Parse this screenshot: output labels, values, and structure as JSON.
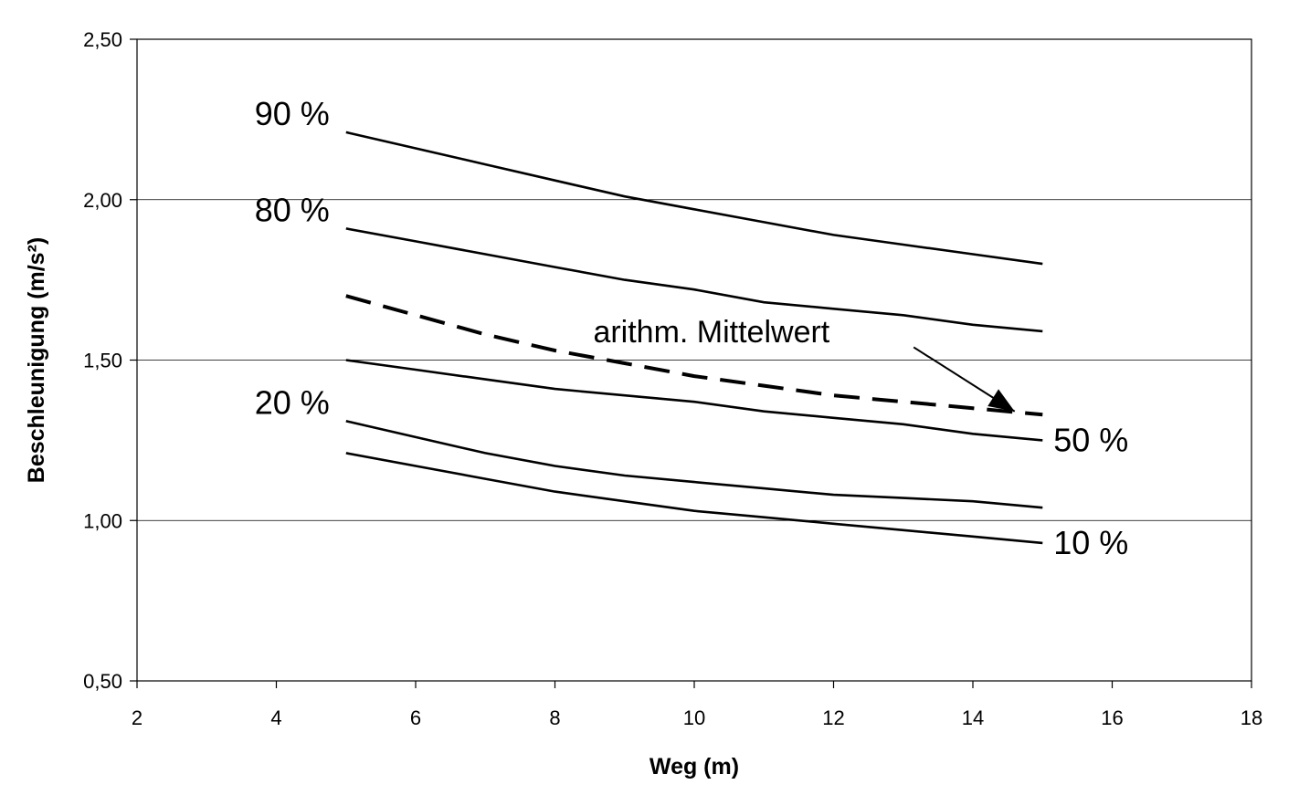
{
  "chart_data": {
    "type": "line",
    "title": "",
    "xlabel": "Weg (m)",
    "ylabel": "Beschleunigung (m/s²)",
    "xlim": [
      2,
      18
    ],
    "ylim": [
      0.5,
      2.5
    ],
    "x_ticks": [
      2,
      4,
      6,
      8,
      10,
      12,
      14,
      16,
      18
    ],
    "x_tick_labels": [
      "2",
      "4",
      "6",
      "8",
      "10",
      "12",
      "14",
      "16",
      "18"
    ],
    "y_ticks": [
      0.5,
      1.0,
      1.5,
      2.0,
      2.5
    ],
    "y_tick_labels": [
      "0,50",
      "1,00",
      "1,50",
      "2,00",
      "2,50"
    ],
    "grid": "horizontal",
    "x": [
      5,
      6,
      7,
      8,
      9,
      10,
      11,
      12,
      13,
      14,
      15
    ],
    "series": [
      {
        "name": "90 %",
        "style": "solid",
        "values": [
          2.21,
          2.16,
          2.11,
          2.06,
          2.01,
          1.97,
          1.93,
          1.89,
          1.86,
          1.83,
          1.8
        ]
      },
      {
        "name": "80 %",
        "style": "solid",
        "values": [
          1.91,
          1.87,
          1.83,
          1.79,
          1.75,
          1.72,
          1.68,
          1.66,
          1.64,
          1.61,
          1.59
        ]
      },
      {
        "name": "arithm. Mittelwert",
        "style": "dashed",
        "values": [
          1.7,
          1.64,
          1.58,
          1.53,
          1.49,
          1.45,
          1.42,
          1.39,
          1.37,
          1.35,
          1.33
        ]
      },
      {
        "name": "50 %",
        "style": "solid",
        "values": [
          1.5,
          1.47,
          1.44,
          1.41,
          1.39,
          1.37,
          1.34,
          1.32,
          1.3,
          1.27,
          1.25
        ]
      },
      {
        "name": "20 %",
        "style": "solid",
        "values": [
          1.31,
          1.26,
          1.21,
          1.17,
          1.14,
          1.12,
          1.1,
          1.08,
          1.07,
          1.06,
          1.04
        ]
      },
      {
        "name": "10 %",
        "style": "solid",
        "values": [
          1.21,
          1.17,
          1.13,
          1.09,
          1.06,
          1.03,
          1.01,
          0.99,
          0.97,
          0.95,
          0.93
        ]
      }
    ],
    "annotation": {
      "text": "arithm. Mittelwert",
      "arrow_to": [
        14.6,
        1.34
      ]
    }
  }
}
